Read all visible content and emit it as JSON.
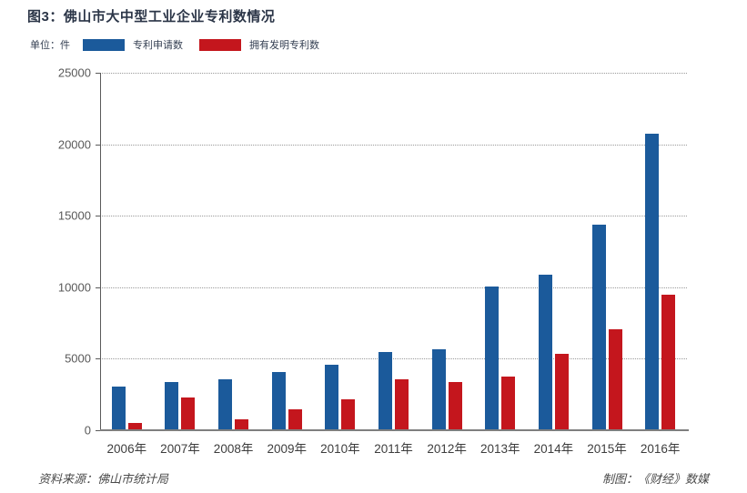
{
  "title": "图3：佛山市大中型工业企业专利数情况",
  "unit_label": "单位：件",
  "colors": {
    "series_blue": "#1b5a9b",
    "series_red": "#c4161d",
    "title_text": "#2b3547",
    "axis_text": "#595959",
    "grid": "#9a9a9a"
  },
  "footer": {
    "source": "资料来源：佛山市统计局",
    "credit": "制图：《财经》数媒"
  },
  "chart_data": {
    "type": "bar",
    "title": "图3：佛山市大中型工业企业专利数情况",
    "unit": "件",
    "categories": [
      "2006年",
      "2007年",
      "2008年",
      "2009年",
      "2010年",
      "2011年",
      "2012年",
      "2013年",
      "2014年",
      "2015年",
      "2016年"
    ],
    "series": [
      {
        "name": "专利申请数",
        "color": "#1b5a9b",
        "values": [
          3000,
          3300,
          3500,
          4000,
          4500,
          5400,
          5600,
          10000,
          10800,
          14300,
          20700
        ]
      },
      {
        "name": "拥有发明专利数",
        "color": "#c4161d",
        "values": [
          450,
          2200,
          700,
          1400,
          2100,
          3500,
          3300,
          3700,
          5300,
          7000,
          9400
        ]
      }
    ],
    "xlabel": "",
    "ylabel": "",
    "ylim": [
      0,
      25000
    ],
    "yticks": [
      0,
      5000,
      10000,
      15000,
      20000,
      25000
    ],
    "grid": "horizontal-dotted",
    "legend_position": "top-left"
  }
}
